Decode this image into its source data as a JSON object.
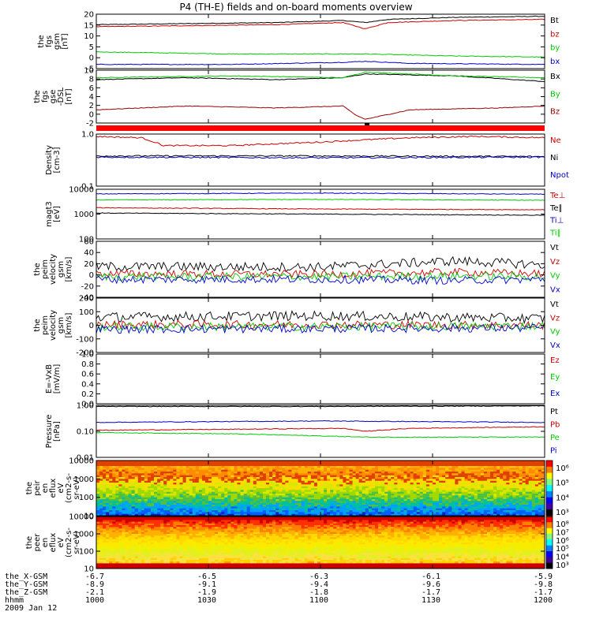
{
  "chart_data": {
    "type": "line",
    "title": "P4 (TH-E) fields and on-board moments overview",
    "panels": [
      {
        "id": "fgs",
        "ylabel": [
          "the",
          "fgs",
          "gsm",
          "[nT]"
        ],
        "ylim": [
          -6,
          20
        ],
        "ticks": [
          "20",
          "15",
          "10",
          "5",
          "0",
          "-5"
        ],
        "legend": [
          {
            "name": "Bt",
            "color": "#000000"
          },
          {
            "name": "bz",
            "color": "#cc0000"
          },
          {
            "name": "by",
            "color": "#00cc00"
          },
          {
            "name": "bx",
            "color": "#0000cc"
          }
        ],
        "series": [
          {
            "name": "Bt",
            "color": "#000000",
            "x": [
              0,
              0.2,
              0.4,
              0.55,
              0.6,
              0.65,
              0.8,
              1
            ],
            "y": [
              15,
              15.5,
              16,
              17,
              16,
              17.5,
              18.5,
              19
            ]
          },
          {
            "name": "bz",
            "color": "#cc0000",
            "x": [
              0,
              0.2,
              0.4,
              0.55,
              0.6,
              0.65,
              0.8,
              1
            ],
            "y": [
              14,
              14.5,
              15,
              16,
              13,
              16,
              17,
              17.5
            ]
          },
          {
            "name": "by",
            "color": "#00cc00",
            "x": [
              0,
              0.3,
              0.6,
              0.8,
              1
            ],
            "y": [
              2,
              1,
              1,
              0,
              -0.5
            ]
          },
          {
            "name": "bx",
            "color": "#0000cc",
            "x": [
              0,
              0.3,
              0.55,
              0.6,
              0.7,
              1
            ],
            "y": [
              -4,
              -4,
              -3,
              -2.5,
              -3.5,
              -4
            ]
          }
        ]
      },
      {
        "id": "fgs_dsl",
        "ylabel": [
          "the",
          "fgs",
          "gse",
          "-DSL",
          "[nT]"
        ],
        "ylim": [
          -3,
          11
        ],
        "ticks": [
          "10",
          "8",
          "6",
          "4",
          "2",
          "0",
          "-2"
        ],
        "legend": [
          {
            "name": "Bx",
            "color": "#000000"
          },
          {
            "name": "By",
            "color": "#00cc00"
          },
          {
            "name": "Bz",
            "color": "#990000"
          }
        ],
        "series": [
          {
            "name": "Bx",
            "color": "#000000",
            "x": [
              0,
              0.2,
              0.4,
              0.55,
              0.6,
              0.8,
              1
            ],
            "y": [
              8.5,
              9,
              8.5,
              9,
              10,
              9.5,
              8
            ]
          },
          {
            "name": "By",
            "color": "#00cc00",
            "x": [
              0,
              0.3,
              0.55,
              0.6,
              0.8,
              1
            ],
            "y": [
              9,
              9.5,
              9,
              10.5,
              9.5,
              9
            ]
          },
          {
            "name": "Bz",
            "color": "#990000",
            "x": [
              0,
              0.2,
              0.4,
              0.55,
              0.58,
              0.6,
              0.7,
              0.9,
              1
            ],
            "y": [
              0.5,
              1.5,
              1,
              1.5,
              -1,
              -2,
              0.5,
              1,
              1.5
            ]
          }
        ]
      },
      {
        "id": "density",
        "ylabel": [
          "Density",
          "[cm-3]"
        ],
        "ylim": [
          0.1,
          1
        ],
        "log": true,
        "ticks": [
          "1.0",
          "0.1"
        ],
        "legend": [
          {
            "name": "Ne",
            "color": "#cc0000"
          },
          {
            "name": "Ni",
            "color": "#000000"
          },
          {
            "name": "Npot",
            "color": "#0000cc"
          }
        ],
        "series": [
          {
            "name": "Ne",
            "color": "#cc0000",
            "x": [
              0,
              0.1,
              0.15,
              0.3,
              0.5,
              0.7,
              0.85,
              1
            ],
            "y": [
              0.9,
              0.85,
              0.6,
              0.6,
              0.7,
              0.85,
              0.9,
              0.85
            ]
          },
          {
            "name": "Ni",
            "color": "#000000",
            "x": [
              0,
              0.5,
              1
            ],
            "y": [
              0.38,
              0.38,
              0.37
            ]
          },
          {
            "name": "Npot",
            "color": "#0000cc",
            "x": [
              0,
              0.5,
              1
            ],
            "y": [
              0.36,
              0.35,
              0.36
            ]
          }
        ]
      },
      {
        "id": "temp",
        "ylabel": [
          "magt3",
          "[eV]"
        ],
        "ylim": [
          100,
          10000
        ],
        "log": true,
        "ticks": [
          "10000",
          "1000",
          "100"
        ],
        "legend": [
          {
            "name": "Te⊥",
            "color": "#cc0000"
          },
          {
            "name": "Te∥",
            "color": "#000000"
          },
          {
            "name": "Ti⊥",
            "color": "#0000cc"
          },
          {
            "name": "Ti∥",
            "color": "#00cc00"
          }
        ],
        "series": [
          {
            "name": "Ti⊥",
            "color": "#0000cc",
            "x": [
              0,
              0.5,
              1
            ],
            "y": [
              6500,
              7000,
              6300
            ]
          },
          {
            "name": "Ti∥",
            "color": "#00cc00",
            "x": [
              0,
              0.5,
              1
            ],
            "y": [
              3700,
              3900,
              3600
            ]
          },
          {
            "name": "Te⊥",
            "color": "#cc0000",
            "x": [
              0,
              0.5,
              1
            ],
            "y": [
              1800,
              1600,
              1500
            ]
          },
          {
            "name": "Te∥",
            "color": "#000000",
            "x": [
              0,
              0.5,
              1
            ],
            "y": [
              1100,
              1000,
              900
            ]
          }
        ]
      },
      {
        "id": "peim",
        "ylabel": [
          "the",
          "peim",
          "velocity",
          "gsm",
          "[km/s]"
        ],
        "ylim": [
          -40,
          60
        ],
        "ticks": [
          "60",
          "40",
          "20",
          "0",
          "-20",
          "-40"
        ],
        "legend": [
          {
            "name": "Vt",
            "color": "#000000"
          },
          {
            "name": "Vz",
            "color": "#cc0000"
          },
          {
            "name": "Vy",
            "color": "#00cc00"
          },
          {
            "name": "Vx",
            "color": "#0000cc"
          }
        ],
        "series": [
          {
            "name": "Vt",
            "color": "#000000",
            "x": [
              0,
              0.5,
              0.8,
              1
            ],
            "y": [
              15,
              14,
              25,
              18
            ]
          },
          {
            "name": "Vz",
            "color": "#cc0000",
            "x": [
              0,
              0.5,
              0.8,
              1
            ],
            "y": [
              2,
              1,
              5,
              2
            ]
          },
          {
            "name": "Vy",
            "color": "#00cc00",
            "x": [
              0,
              0.5,
              0.8,
              1
            ],
            "y": [
              -3,
              -3,
              -2,
              -3
            ]
          },
          {
            "name": "Vx",
            "color": "#0000cc",
            "x": [
              0,
              0.5,
              0.8,
              1
            ],
            "y": [
              -8,
              -8,
              -10,
              -8
            ]
          }
        ]
      },
      {
        "id": "peim2",
        "ylabel": [
          "the",
          "peim",
          "velocity",
          "gsm",
          "[km/s]"
        ],
        "ylim": [
          -200,
          200
        ],
        "ticks": [
          "200",
          "100",
          "0",
          "-100",
          "-200"
        ],
        "legend": [
          {
            "name": "Vt",
            "color": "#000000"
          },
          {
            "name": "Vz",
            "color": "#cc0000"
          },
          {
            "name": "Vy",
            "color": "#00cc00"
          },
          {
            "name": "Vx",
            "color": "#0000cc"
          }
        ],
        "series": [
          {
            "name": "Vt",
            "color": "#000000",
            "x": [
              0,
              0.5,
              1
            ],
            "y": [
              60,
              70,
              50
            ]
          },
          {
            "name": "Vz",
            "color": "#cc0000",
            "x": [
              0,
              0.5,
              1
            ],
            "y": [
              5,
              5,
              0
            ]
          },
          {
            "name": "Vy",
            "color": "#00cc00",
            "x": [
              0,
              0.5,
              1
            ],
            "y": [
              -10,
              -10,
              -5
            ]
          },
          {
            "name": "Vx",
            "color": "#0000cc",
            "x": [
              0,
              0.5,
              1
            ],
            "y": [
              -30,
              -25,
              -20
            ]
          }
        ]
      },
      {
        "id": "efield",
        "ylabel": [
          "E=-VxB",
          "[mV/m]"
        ],
        "ylim": [
          0,
          1
        ],
        "ticks": [
          "1.0",
          "0.8",
          "0.6",
          "0.4",
          "0.2",
          "0.0"
        ],
        "legend": [
          {
            "name": "Ez",
            "color": "#cc0000"
          },
          {
            "name": "Ey",
            "color": "#00cc00"
          },
          {
            "name": "Ex",
            "color": "#0000cc"
          }
        ],
        "series": []
      },
      {
        "id": "pressure",
        "ylabel": [
          "Pressure",
          "[nPa]"
        ],
        "ylim": [
          0.01,
          1
        ],
        "log": true,
        "ticks": [
          "1.00",
          "0.10",
          "0.01"
        ],
        "legend": [
          {
            "name": "Pt",
            "color": "#000000"
          },
          {
            "name": "Pb",
            "color": "#cc0000"
          },
          {
            "name": "Pe",
            "color": "#00cc00"
          },
          {
            "name": "Pi",
            "color": "#0000cc"
          }
        ],
        "series": [
          {
            "name": "Pt",
            "color": "#000000",
            "x": [
              0,
              0.5,
              1
            ],
            "y": [
              0.9,
              0.9,
              0.95
            ]
          },
          {
            "name": "Pi",
            "color": "#0000cc",
            "x": [
              0,
              0.5,
              1
            ],
            "y": [
              0.22,
              0.25,
              0.22
            ]
          },
          {
            "name": "Pb",
            "color": "#cc0000",
            "x": [
              0,
              0.3,
              0.55,
              0.6,
              0.7,
              1
            ],
            "y": [
              0.11,
              0.12,
              0.13,
              0.1,
              0.13,
              0.15
            ]
          },
          {
            "name": "Pe",
            "color": "#00cc00",
            "x": [
              0,
              0.3,
              0.6,
              1
            ],
            "y": [
              0.09,
              0.08,
              0.06,
              0.06
            ]
          }
        ]
      },
      {
        "id": "peir",
        "ylabel": [
          "the",
          "peir",
          "en",
          "eflux",
          "eV",
          "(cm2-s-",
          "sr-eV)"
        ],
        "spectrogram": true,
        "ylim": [
          10,
          20000
        ],
        "log": true,
        "ticks": [
          "10000",
          "1000",
          "100",
          "10"
        ],
        "colorbar": [
          "10⁶",
          "10⁵",
          "10⁴",
          "10³"
        ]
      },
      {
        "id": "peer",
        "ylabel": [
          "the",
          "peer",
          "en",
          "eflux",
          "eV",
          "(cm2-s-",
          "sr-eV)"
        ],
        "spectrogram": true,
        "ylim": [
          10,
          20000
        ],
        "log": true,
        "ticks": [
          "10000",
          "1000",
          "100",
          "10"
        ],
        "colorbar": [
          "10⁸",
          "10⁷",
          "10⁶",
          "10⁵",
          "10⁴",
          "10³"
        ]
      }
    ],
    "x_axis": {
      "rows": [
        {
          "label": "the_X-GSM",
          "values": [
            "-6.7",
            "-6.5",
            "-6.3",
            "-6.1",
            "-5.9"
          ]
        },
        {
          "label": "the_Y-GSM",
          "values": [
            "-8.9",
            "-9.1",
            "-9.4",
            "-9.6",
            "-9.8"
          ]
        },
        {
          "label": "the_Z-GSM",
          "values": [
            "-2.1",
            "-1.9",
            "-1.8",
            "-1.7",
            "-1.7"
          ]
        },
        {
          "label": "hhmm",
          "values": [
            "1000",
            "1030",
            "1100",
            "1130",
            "1200"
          ]
        }
      ],
      "date": "2009 Jan 12"
    }
  }
}
